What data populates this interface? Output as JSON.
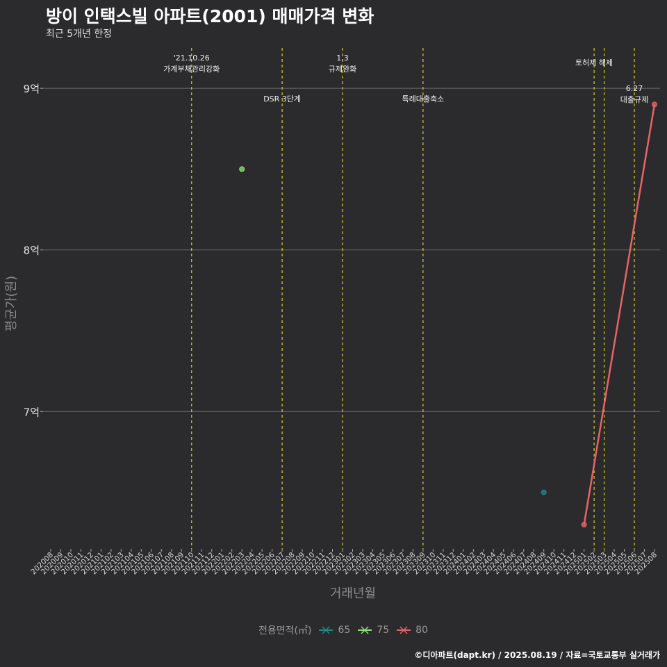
{
  "title": "방이 인택스빌 아파트(2001) 매매가격 변화",
  "subtitle": "최근 5개년 한정",
  "caption": "©디아파트(dapt.kr) / 2025.08.19 / 자료=국토교통부 실거래가",
  "legend": {
    "title": "전용면적(㎡)",
    "items": [
      {
        "label": "65",
        "color": "#1f8a8c",
        "icon": "line-cross-icon"
      },
      {
        "label": "75",
        "color": "#8fe07a",
        "icon": "line-cross-icon"
      },
      {
        "label": "80",
        "color": "#e86464",
        "icon": "line-cross-icon"
      }
    ]
  },
  "chart_data": {
    "type": "line",
    "xlabel": "거래년월",
    "ylabel": "평균가(원)",
    "ylim": [
      6.15,
      9.28
    ],
    "y_ticks": [
      {
        "value": 7,
        "label": "7억"
      },
      {
        "value": 8,
        "label": "8억"
      },
      {
        "value": 9,
        "label": "9억"
      }
    ],
    "categories": [
      "202008",
      "202009",
      "202010",
      "202011",
      "202012",
      "202101",
      "202102",
      "202103",
      "202104",
      "202105",
      "202106",
      "202107",
      "202108",
      "202109",
      "202110",
      "202111",
      "202112",
      "202201",
      "202202",
      "202203",
      "202204",
      "202205",
      "202206",
      "202207",
      "202208",
      "202209",
      "202210",
      "202211",
      "202212",
      "202301",
      "202302",
      "202303",
      "202304",
      "202305",
      "202306",
      "202307",
      "202308",
      "202309",
      "202310",
      "202311",
      "202312",
      "202401",
      "202402",
      "202403",
      "202404",
      "202405",
      "202406",
      "202407",
      "202408",
      "202409",
      "202410",
      "202411",
      "202412",
      "202501",
      "202502",
      "202503",
      "202504",
      "202505",
      "202506",
      "202507",
      "202508"
    ],
    "series": [
      {
        "name": "65",
        "color": "#1f8a8c",
        "points": [
          {
            "x": "202409",
            "y": 6.5
          }
        ]
      },
      {
        "name": "75",
        "color": "#8fe07a",
        "points": [
          {
            "x": "202203",
            "y": 8.5
          }
        ]
      },
      {
        "name": "80",
        "color": "#e86464",
        "points": [
          {
            "x": "202501",
            "y": 6.3
          },
          {
            "x": "202508",
            "y": 8.9
          }
        ]
      }
    ],
    "events": [
      {
        "x": "202110",
        "label": "'21.10.26\n가계부채관리강화",
        "row": "top"
      },
      {
        "x": "202207",
        "label": "DSR 3단계",
        "row": "mid"
      },
      {
        "x": "202301",
        "label": "1.3\n규제완화",
        "row": "top"
      },
      {
        "x": "202309",
        "label": "특례대출축소",
        "row": "mid"
      },
      {
        "x": "202502",
        "label": "토허제 해제",
        "row": "top"
      },
      {
        "x": "202503",
        "label": "",
        "row": "top"
      },
      {
        "x": "202506",
        "label": "6.27\n대출규제",
        "row": "low"
      }
    ]
  }
}
